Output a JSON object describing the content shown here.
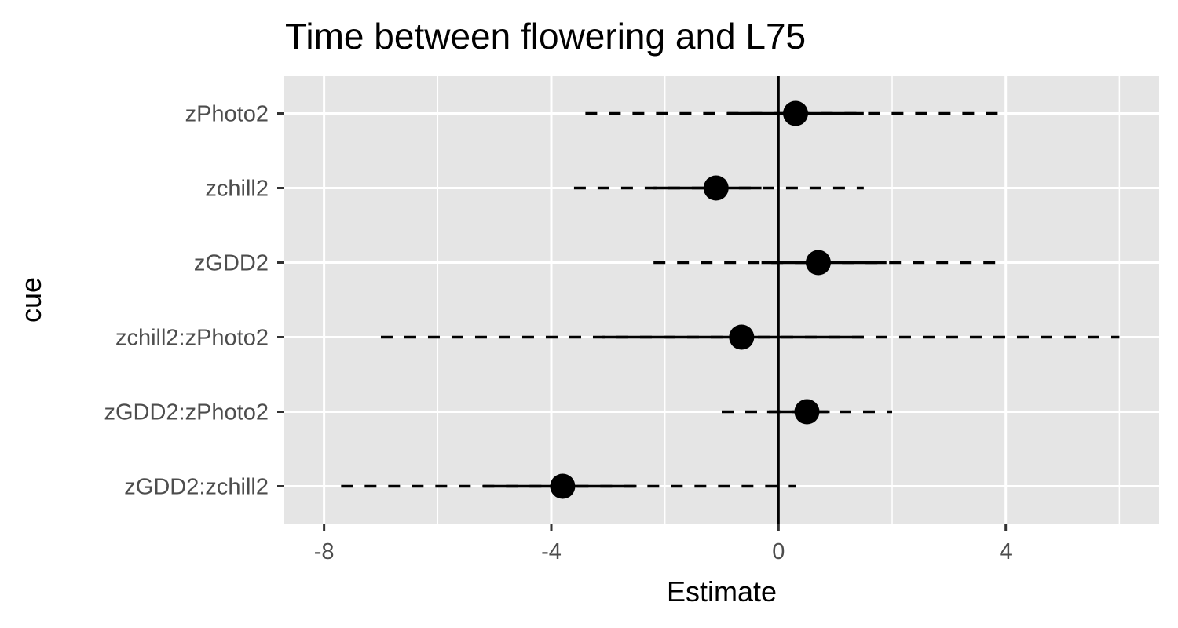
{
  "chart_data": {
    "type": "forest",
    "title": "Time between flowering and L75",
    "xlabel": "Estimate",
    "ylabel": "cue",
    "xlim": [
      -8.7,
      6.7
    ],
    "x_ticks": [
      -8,
      -4,
      0,
      4
    ],
    "x_minor_ticks": [
      -6,
      -2,
      2,
      6
    ],
    "reference_line": 0,
    "grid": true,
    "categories": [
      "zPhoto2",
      "zchill2",
      "zGDD2",
      "zchill2:zPhoto2",
      "zGDD2:zPhoto2",
      "zGDD2:zchill2"
    ],
    "points": [
      {
        "cue": "zPhoto2",
        "estimate": 0.3,
        "inner": [
          -0.9,
          1.5
        ],
        "outer": [
          -3.4,
          4.0
        ]
      },
      {
        "cue": "zchill2",
        "estimate": -1.1,
        "inner": [
          -2.2,
          -0.3
        ],
        "outer": [
          -3.6,
          1.5
        ]
      },
      {
        "cue": "zGDD2",
        "estimate": 0.7,
        "inner": [
          -0.3,
          1.9
        ],
        "outer": [
          -2.2,
          3.9
        ]
      },
      {
        "cue": "zchill2:zPhoto2",
        "estimate": -0.65,
        "inner": [
          -3.1,
          1.5
        ],
        "outer": [
          -7.0,
          6.0
        ]
      },
      {
        "cue": "zGDD2:zPhoto2",
        "estimate": 0.5,
        "inner": [
          -0.2,
          0.9
        ],
        "outer": [
          -1.0,
          2.0
        ]
      },
      {
        "cue": "zGDD2:zchill2",
        "estimate": -3.8,
        "inner": [
          -5.2,
          -2.5
        ],
        "outer": [
          -7.7,
          0.3
        ]
      }
    ],
    "colors": {
      "panel": "#e5e5e5",
      "grid": "#ffffff",
      "marks": "#000000",
      "tick_text": "#4d4d4d"
    }
  }
}
